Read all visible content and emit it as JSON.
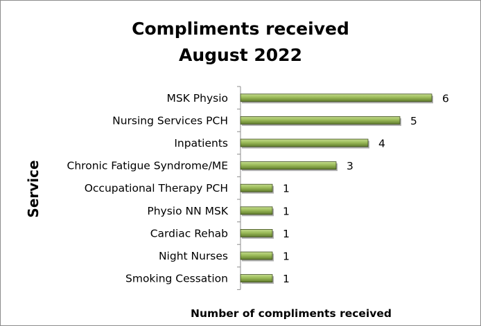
{
  "chart_data": {
    "type": "bar",
    "orientation": "horizontal",
    "title": [
      "Compliments received",
      "August 2022"
    ],
    "xlabel": "Number of compliments received",
    "ylabel": "Service",
    "categories": [
      "MSK Physio",
      "Nursing Services PCH",
      "Inpatients",
      "Chronic Fatigue Syndrome/ME",
      "Occupational Therapy PCH",
      "Physio NN MSK",
      "Cardiac Rehab",
      "Night Nurses",
      "Smoking Cessation"
    ],
    "values": [
      6,
      5,
      4,
      3,
      1,
      1,
      1,
      1,
      1
    ],
    "xlim": [
      0,
      6
    ],
    "grid": false,
    "legend": "none",
    "bar_color": "#9bbb59",
    "bar_highlight": "#c5dc8e",
    "bar_shadow": "#5f7a2c",
    "bar_outline": "#3b4a1b"
  }
}
